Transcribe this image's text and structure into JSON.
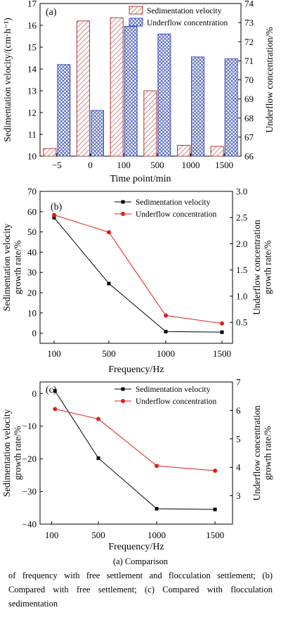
{
  "chart_data": [
    {
      "id": "a",
      "type": "bar",
      "panel_label": "(a)",
      "xlabel": "Time point/min",
      "ylabel_left": "Sedimentation velocity/(cm·h⁻¹)",
      "ylabel_right": "Underflow concentration/%",
      "categories": [
        "−5",
        "0",
        "100",
        "500",
        "1000",
        "1500"
      ],
      "ylim_left": [
        10,
        17
      ],
      "yticks_left": [
        "10",
        "11",
        "12",
        "13",
        "14",
        "15",
        "16",
        "17"
      ],
      "ylim_right": [
        66,
        74
      ],
      "yticks_right": [
        "66",
        "67",
        "68",
        "69",
        "70",
        "71",
        "72",
        "73",
        "74"
      ],
      "series": [
        {
          "name": "Sedimentation velocity",
          "axis": "left",
          "values": [
            10.35,
            16.2,
            16.35,
            13.0,
            10.5,
            10.45
          ]
        },
        {
          "name": "Underflow concentration",
          "axis": "right",
          "values": [
            70.8,
            68.4,
            72.8,
            72.4,
            71.2,
            71.1
          ]
        }
      ],
      "legend_position": "top-right",
      "colors": {
        "velocity": "#b03a3a",
        "concentration": "#3a4db5"
      }
    },
    {
      "id": "b",
      "type": "line",
      "panel_label": "(b)",
      "xlabel": "Frequency/Hz",
      "ylabel_left_lines": [
        "Sedimentation velocity",
        "growth rate/%"
      ],
      "ylabel_right_lines": [
        "Underflow concentration",
        "growth rate/%"
      ],
      "categories": [
        "100",
        "500",
        "1000",
        "1500"
      ],
      "ylim_left": [
        -5,
        70
      ],
      "yticks_left": [
        "0",
        "10",
        "20",
        "30",
        "40",
        "50",
        "60",
        "70"
      ],
      "ylim_right": [
        0.1,
        3.0
      ],
      "yticks_right": [
        "0.5",
        "1.0",
        "1.5",
        "2.0",
        "2.5",
        "3.0"
      ],
      "series": [
        {
          "name": "Sedimentation velocity",
          "axis": "left",
          "values": [
            57,
            24.5,
            0.8,
            0.5
          ]
        },
        {
          "name": "Underflow concentration",
          "axis": "right",
          "values": [
            2.55,
            2.22,
            0.63,
            0.48
          ]
        }
      ],
      "legend_position": "top-right",
      "colors": {
        "velocity": "#000000",
        "concentration": "#e0201c"
      }
    },
    {
      "id": "c",
      "type": "line",
      "panel_label": "(c)",
      "xlabel": "Frequency/Hz",
      "ylabel_left_lines": [
        "Sedimentation velocity",
        "growth rate/%"
      ],
      "ylabel_right_lines": [
        "Underflow concentration",
        "growth rate/%"
      ],
      "x": [
        100,
        500,
        1000,
        1500
      ],
      "xticks": [
        "100",
        "500",
        "1000",
        "1500"
      ],
      "xlim": [
        0,
        1650
      ],
      "ylim_left": [
        -40,
        3.5
      ],
      "yticks_left": [
        "0",
        "−10",
        "−20",
        "−30",
        "−40"
      ],
      "ylim_right": [
        2,
        7
      ],
      "yticks_right": [
        "3",
        "4",
        "5",
        "6",
        "7"
      ],
      "series": [
        {
          "name": "Sedimentation velocity",
          "axis": "left",
          "x": [
            128,
            500,
            1000,
            1500
          ],
          "values": [
            0.8,
            -19.8,
            -35.3,
            -35.5
          ]
        },
        {
          "name": "Underflow concentration",
          "axis": "right",
          "x": [
            128,
            500,
            1000,
            1500
          ],
          "values": [
            6.05,
            5.7,
            4.05,
            3.88
          ]
        }
      ],
      "legend_position": "top-right",
      "colors": {
        "velocity": "#000000",
        "concentration": "#e0201c"
      }
    }
  ],
  "caption": {
    "title": "(a) Comparison",
    "body": "of frequency with free settlement and flocculation settlement; (b) Compared with free settlement; (c) Compared with flocculation sedimentation"
  }
}
